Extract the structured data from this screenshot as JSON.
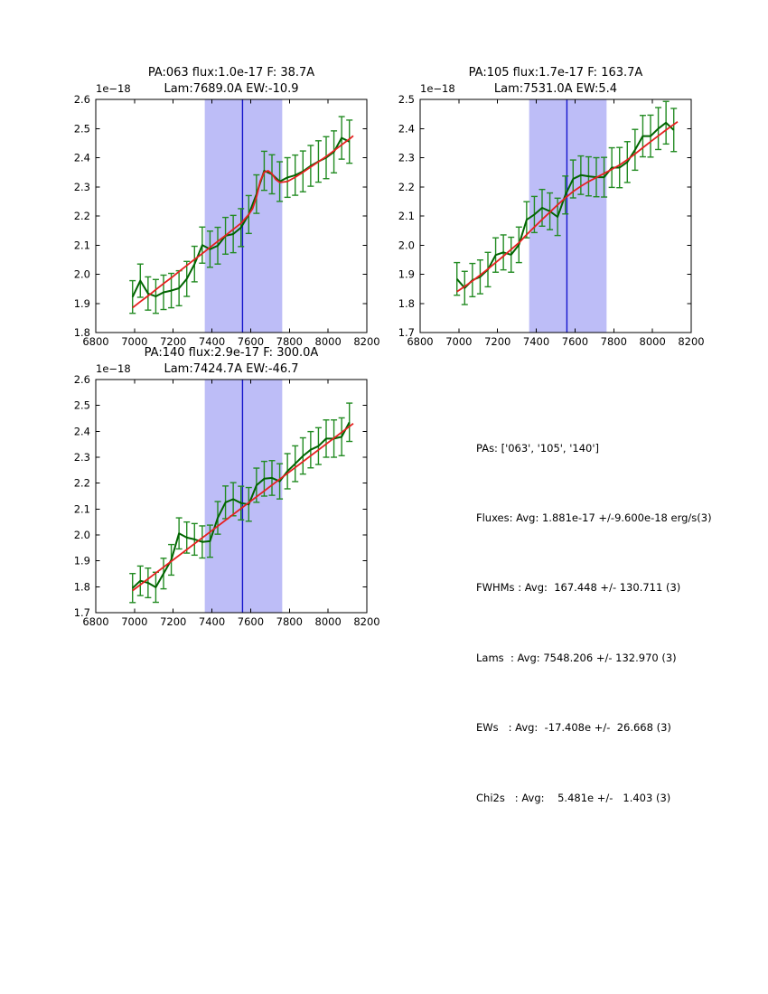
{
  "window": {
    "background": "#ffffff"
  },
  "colors": {
    "data_line": "#006400",
    "error_bar": "#228b22",
    "fit_line": "#e62020",
    "band_fill": "#bdbdf7",
    "band_line": "#1414cc",
    "axis": "#000000"
  },
  "stats_panel": {
    "lines": [
      "PAs: ['063', '105', '140']",
      "Fluxes: Avg: 1.881e-17 +/-9.600e-18 erg/s(3)",
      "FWHMs : Avg:  167.448 +/- 130.711 (3)",
      "Lams  : Avg: 7548.206 +/- 132.970 (3)",
      "EWs   : Avg:  -17.408e +/-  26.668 (3)",
      "Chi2s   : Avg:    5.481e +/-   1.403 (3)"
    ]
  },
  "chart_data": [
    {
      "type": "line",
      "title_line1": "PA:063 flux:1.0e-17 F: 38.7A",
      "title_line2": "Lam:7689.0A EW:-10.9",
      "y_offset_label": "1e−18",
      "xlim": [
        6800,
        8200
      ],
      "ylim": [
        1.8,
        2.6
      ],
      "xticks": [
        6800,
        7000,
        7200,
        7400,
        7600,
        7800,
        8000,
        8200
      ],
      "ytick_labels": [
        "1.8",
        "1.9",
        "2.0",
        "2.1",
        "2.2",
        "2.3",
        "2.4",
        "2.5",
        "2.6"
      ],
      "highlight_band_x": [
        7363,
        7763
      ],
      "center_line_x": 7558,
      "series": [
        {
          "name": "spectrum",
          "color_key": "data_line",
          "x": [
            6990,
            7030,
            7070,
            7110,
            7150,
            7190,
            7230,
            7270,
            7310,
            7350,
            7390,
            7430,
            7470,
            7510,
            7550,
            7590,
            7630,
            7670,
            7710,
            7750,
            7790,
            7830,
            7870,
            7910,
            7950,
            7990,
            8030,
            8070,
            8110
          ],
          "y": [
            1.922,
            1.978,
            1.934,
            1.924,
            1.938,
            1.944,
            1.952,
            1.984,
            2.035,
            2.1,
            2.086,
            2.098,
            2.132,
            2.138,
            2.16,
            2.205,
            2.275,
            2.355,
            2.343,
            2.318,
            2.332,
            2.34,
            2.353,
            2.372,
            2.387,
            2.4,
            2.42,
            2.468,
            2.455
          ],
          "yerr": [
            0.056,
            0.057,
            0.057,
            0.058,
            0.059,
            0.059,
            0.06,
            0.06,
            0.061,
            0.062,
            0.062,
            0.063,
            0.063,
            0.064,
            0.065,
            0.065,
            0.066,
            0.067,
            0.067,
            0.068,
            0.068,
            0.069,
            0.07,
            0.07,
            0.071,
            0.072,
            0.072,
            0.073,
            0.074
          ]
        },
        {
          "name": "fit",
          "color_key": "fit_line",
          "x": [
            6990,
            7030,
            7070,
            7110,
            7150,
            7190,
            7230,
            7270,
            7310,
            7350,
            7390,
            7430,
            7470,
            7510,
            7550,
            7590,
            7610,
            7630,
            7650,
            7670,
            7690,
            7710,
            7730,
            7750,
            7790,
            7830,
            7870,
            7910,
            7950,
            7990,
            8030,
            8070,
            8110,
            8130
          ],
          "y": [
            1.885,
            1.906,
            1.926,
            1.947,
            1.968,
            1.988,
            2.009,
            2.03,
            2.051,
            2.071,
            2.092,
            2.113,
            2.133,
            2.154,
            2.175,
            2.205,
            2.225,
            2.265,
            2.32,
            2.35,
            2.355,
            2.345,
            2.325,
            2.315,
            2.318,
            2.333,
            2.35,
            2.368,
            2.386,
            2.404,
            2.424,
            2.444,
            2.464,
            2.475
          ]
        }
      ]
    },
    {
      "type": "line",
      "title_line1": "PA:105 flux:1.7e-17 F: 163.7A",
      "title_line2": "Lam:7531.0A EW:5.4",
      "y_offset_label": "1e−18",
      "xlim": [
        6800,
        8200
      ],
      "ylim": [
        1.7,
        2.5
      ],
      "xticks": [
        6800,
        7000,
        7200,
        7400,
        7600,
        7800,
        8000,
        8200
      ],
      "ytick_labels": [
        "1.7",
        "1.8",
        "1.9",
        "2.0",
        "2.1",
        "2.2",
        "2.3",
        "2.4",
        "2.5"
      ],
      "highlight_band_x": [
        7363,
        7763
      ],
      "center_line_x": 7558,
      "series": [
        {
          "name": "spectrum",
          "color_key": "data_line",
          "x": [
            6990,
            7030,
            7070,
            7110,
            7150,
            7190,
            7230,
            7270,
            7310,
            7350,
            7390,
            7430,
            7470,
            7510,
            7550,
            7590,
            7630,
            7670,
            7710,
            7750,
            7790,
            7830,
            7870,
            7910,
            7950,
            7990,
            8030,
            8070,
            8110
          ],
          "y": [
            1.884,
            1.853,
            1.88,
            1.891,
            1.916,
            1.966,
            1.975,
            1.967,
            2.001,
            2.087,
            2.105,
            2.128,
            2.116,
            2.097,
            2.172,
            2.227,
            2.24,
            2.236,
            2.233,
            2.233,
            2.266,
            2.266,
            2.285,
            2.327,
            2.374,
            2.374,
            2.4,
            2.42,
            2.395
          ],
          "yerr": [
            0.056,
            0.057,
            0.057,
            0.058,
            0.059,
            0.059,
            0.06,
            0.06,
            0.061,
            0.062,
            0.062,
            0.063,
            0.063,
            0.064,
            0.065,
            0.065,
            0.066,
            0.067,
            0.067,
            0.068,
            0.068,
            0.069,
            0.07,
            0.07,
            0.071,
            0.072,
            0.072,
            0.073,
            0.074
          ]
        },
        {
          "name": "fit",
          "color_key": "fit_line",
          "x": [
            6990,
            7030,
            7070,
            7110,
            7150,
            7190,
            7230,
            7270,
            7310,
            7350,
            7390,
            7430,
            7470,
            7510,
            7550,
            7590,
            7630,
            7670,
            7710,
            7750,
            7790,
            7830,
            7870,
            7910,
            7950,
            7990,
            8030,
            8070,
            8110,
            8130
          ],
          "y": [
            1.84,
            1.858,
            1.877,
            1.897,
            1.918,
            1.94,
            1.962,
            1.985,
            2.008,
            2.036,
            2.062,
            2.088,
            2.113,
            2.138,
            2.162,
            2.184,
            2.202,
            2.218,
            2.232,
            2.246,
            2.26,
            2.275,
            2.293,
            2.313,
            2.334,
            2.355,
            2.375,
            2.395,
            2.414,
            2.423
          ]
        }
      ]
    },
    {
      "type": "line",
      "title_line1": "PA:140 flux:2.9e-17 F: 300.0A",
      "title_line2": "Lam:7424.7A EW:-46.7",
      "y_offset_label": "1e−18",
      "xlim": [
        6800,
        8200
      ],
      "ylim": [
        1.7,
        2.6
      ],
      "xticks": [
        6800,
        7000,
        7200,
        7400,
        7600,
        7800,
        8000,
        8200
      ],
      "ytick_labels": [
        "1.7",
        "1.8",
        "1.9",
        "2.0",
        "2.1",
        "2.2",
        "2.3",
        "2.4",
        "2.5",
        "2.6"
      ],
      "highlight_band_x": [
        7363,
        7763
      ],
      "center_line_x": 7558,
      "series": [
        {
          "name": "spectrum",
          "color_key": "data_line",
          "x": [
            6990,
            7030,
            7070,
            7110,
            7150,
            7190,
            7230,
            7270,
            7310,
            7350,
            7390,
            7430,
            7470,
            7510,
            7550,
            7590,
            7630,
            7670,
            7710,
            7750,
            7790,
            7830,
            7870,
            7910,
            7950,
            7990,
            8030,
            8070,
            8110
          ],
          "y": [
            1.795,
            1.823,
            1.815,
            1.798,
            1.851,
            1.904,
            2.006,
            1.99,
            1.983,
            1.973,
            1.976,
            2.066,
            2.126,
            2.138,
            2.123,
            2.118,
            2.192,
            2.217,
            2.22,
            2.207,
            2.246,
            2.275,
            2.305,
            2.329,
            2.343,
            2.372,
            2.372,
            2.379,
            2.435
          ],
          "yerr": [
            0.056,
            0.057,
            0.057,
            0.058,
            0.059,
            0.059,
            0.06,
            0.06,
            0.061,
            0.062,
            0.062,
            0.063,
            0.063,
            0.064,
            0.065,
            0.065,
            0.066,
            0.067,
            0.067,
            0.068,
            0.068,
            0.069,
            0.07,
            0.07,
            0.071,
            0.072,
            0.072,
            0.073,
            0.074
          ]
        },
        {
          "name": "fit",
          "color_key": "fit_line",
          "x": [
            6990,
            8130
          ],
          "y": [
            1.785,
            2.43
          ]
        }
      ]
    }
  ]
}
